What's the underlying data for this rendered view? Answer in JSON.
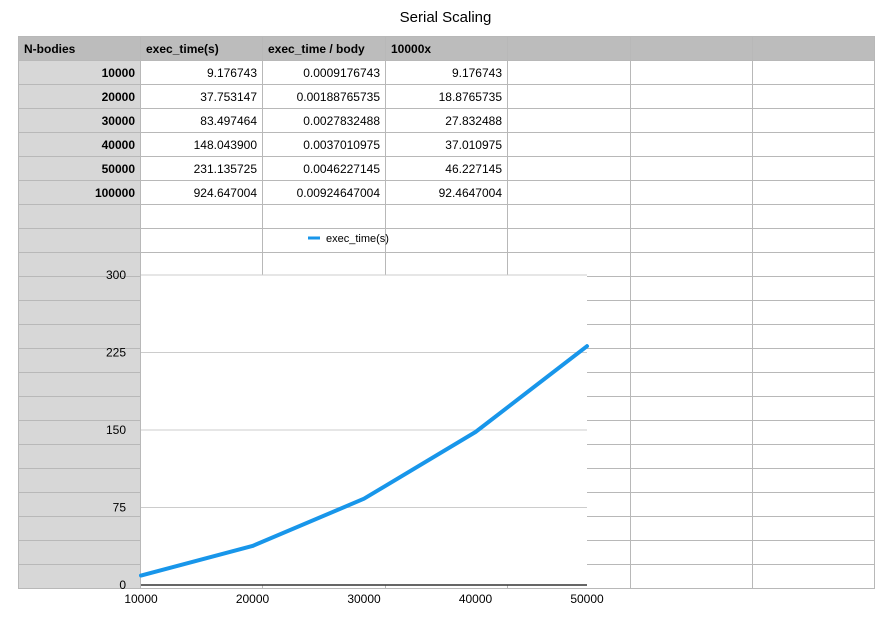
{
  "title": "Serial Scaling",
  "table": {
    "headers": [
      "N-bodies",
      "exec_time(s)",
      "exec_time / body",
      "10000x",
      "",
      "",
      ""
    ],
    "rows": [
      [
        "10000",
        "9.176743",
        "0.0009176743",
        "9.176743"
      ],
      [
        "20000",
        "37.753147",
        "0.00188765735",
        "18.8765735"
      ],
      [
        "30000",
        "83.497464",
        "0.0027832488",
        "27.832488"
      ],
      [
        "40000",
        "148.043900",
        "0.0037010975",
        "37.010975"
      ],
      [
        "50000",
        "231.135725",
        "0.0046227145",
        "46.227145"
      ],
      [
        "100000",
        "924.647004",
        "0.00924647004",
        "92.4647004"
      ]
    ]
  },
  "chart_data": {
    "type": "line",
    "x": [
      10000,
      20000,
      30000,
      40000,
      50000
    ],
    "series": [
      {
        "name": "exec_time(s)",
        "values": [
          9.176743,
          37.753147,
          83.497464,
          148.0439,
          231.135725
        ],
        "color": "#1896ea"
      }
    ],
    "xticks": [
      "10000",
      "20000",
      "30000",
      "40000",
      "50000"
    ],
    "yticks": [
      "0",
      "75",
      "150",
      "225",
      "300"
    ],
    "xlim": [
      10000,
      50000
    ],
    "ylim": [
      0,
      300
    ],
    "grid": true,
    "legend": "top"
  }
}
